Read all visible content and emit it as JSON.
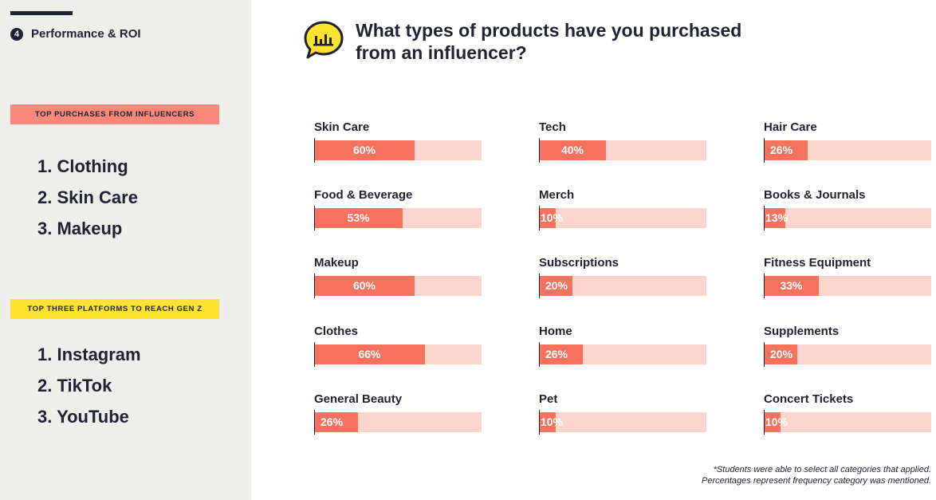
{
  "sidebar": {
    "section_number": "4",
    "section_title": "Performance & ROI",
    "tag_purchases": "TOP PURCHASES FROM INFLUENCERS",
    "purchases": [
      "1. Clothing",
      "2. Skin Care",
      "3. Makeup"
    ],
    "tag_platforms": "TOP THREE PLATFORMS TO REACH GEN Z",
    "platforms": [
      "1. Instagram",
      "2. TikTok",
      "3. YouTube"
    ]
  },
  "headline": {
    "icon": "chat-bubble-chart-icon",
    "line1": "What types of products have you purchased",
    "line2": "from an influencer?"
  },
  "chart_data": {
    "type": "bar",
    "orientation": "horizontal",
    "unit": "%",
    "xlim": [
      0,
      100
    ],
    "categories": [
      "Skin Care",
      "Food & Beverage",
      "Makeup",
      "Clothes",
      "General Beauty",
      "Tech",
      "Merch",
      "Subscriptions",
      "Home",
      "Pet",
      "Hair Care",
      "Books & Journals",
      "Fitness Equipment",
      "Supplements",
      "Concert Tickets"
    ],
    "values": [
      60,
      53,
      60,
      66,
      26,
      40,
      10,
      20,
      26,
      10,
      26,
      13,
      33,
      20,
      10
    ],
    "labels": [
      "60%",
      "53%",
      "60%",
      "66%",
      "26%",
      "40%",
      "10%",
      "20%",
      "26%",
      "10%",
      "26%",
      "13%",
      "33%",
      "20%",
      "10%"
    ],
    "colors": {
      "fill": "#f5725f",
      "track": "#fcd5cd"
    }
  },
  "footnote": {
    "line1": "*Students were able to select all categories that applied.",
    "line2": "Percentages represent frequency category was mentioned."
  }
}
